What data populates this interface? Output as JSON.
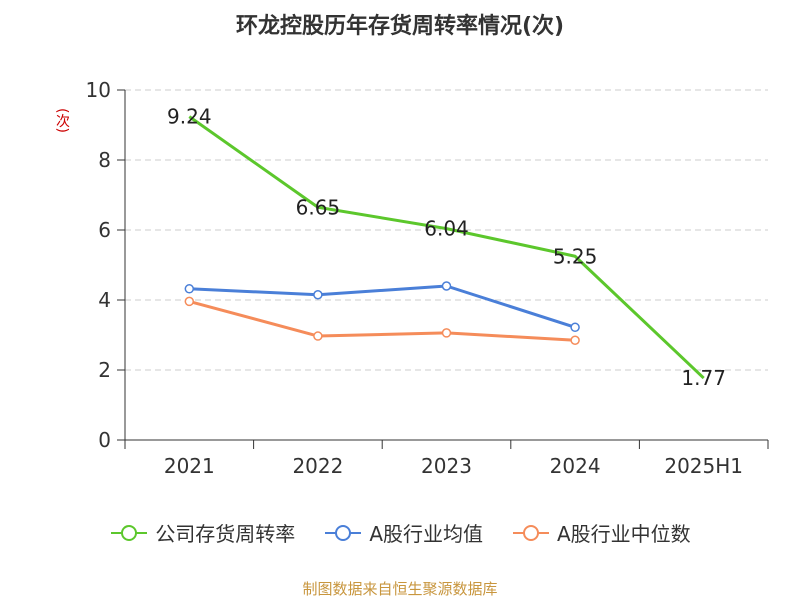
{
  "chart_data": {
    "type": "line",
    "title": "环龙控股历年存货周转率情况(次)",
    "ylabel": "(次)",
    "xlabel": "",
    "categories": [
      "2021",
      "2022",
      "2023",
      "2024",
      "2025H1"
    ],
    "ylim": [
      0,
      10
    ],
    "yticks": [
      0,
      2,
      4,
      6,
      8,
      10
    ],
    "grid": true,
    "legend_position": "bottom",
    "series": [
      {
        "name": "公司存货周转率",
        "color": "#5cc72c",
        "values": [
          9.24,
          6.65,
          6.04,
          5.25,
          1.77
        ],
        "labels": [
          "9.24",
          "6.65",
          "6.04",
          "5.25",
          "1.77"
        ]
      },
      {
        "name": "A股行业均值",
        "color": "#4a7fd8",
        "values": [
          4.32,
          4.15,
          4.4,
          3.22,
          null
        ]
      },
      {
        "name": "A股行业中位数",
        "color": "#f58c5a",
        "values": [
          3.96,
          2.97,
          3.06,
          2.85,
          null
        ]
      }
    ]
  },
  "source": "制图数据来自恒生聚源数据库"
}
